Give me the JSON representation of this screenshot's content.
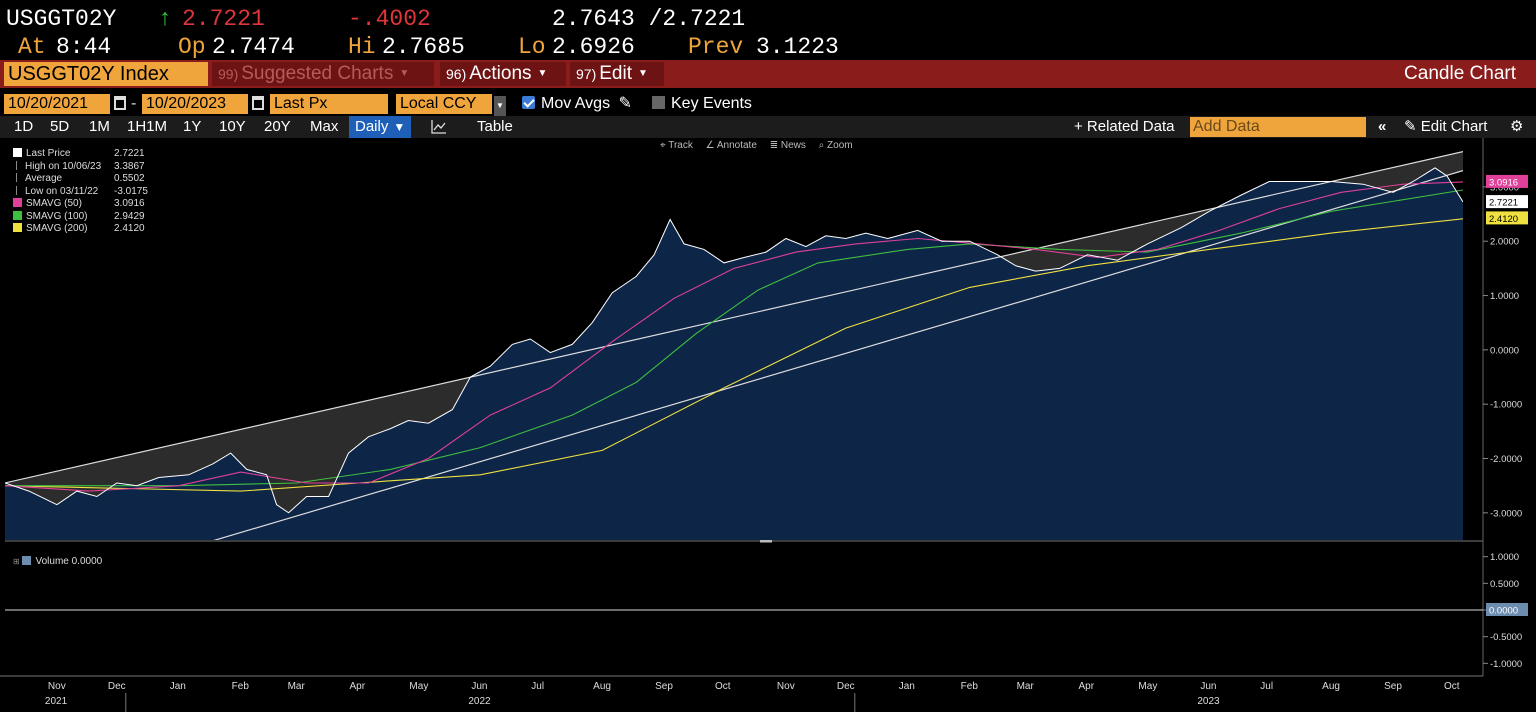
{
  "quote": {
    "ticker": "USGGT02Y",
    "arrow": "↑",
    "last": "2.7221",
    "change": "-.4002",
    "bid_ask": "2.7643 /2.7221",
    "at_label": "At",
    "at_time": "8:44",
    "open_label": "Op",
    "open": "2.7474",
    "high_label": "Hi",
    "high": "2.7685",
    "low_label": "Lo",
    "low": "2.6926",
    "prev_label": "Prev",
    "prev": "3.1223"
  },
  "titlebar": {
    "security": "USGGT02Y Index",
    "suggested_num": "99)",
    "suggested_label": "Suggested Charts",
    "actions_num": "96)",
    "actions_label": "Actions",
    "edit_num": "97)",
    "edit_label": "Edit",
    "chart_type": "Candle Chart"
  },
  "controls": {
    "start_date": "10/20/2021",
    "dash": "-",
    "end_date": "10/20/2023",
    "field": "Last Px",
    "currency": "Local CCY",
    "mov_avgs": "Mov Avgs",
    "key_events": "Key Events"
  },
  "range": {
    "buttons": [
      "1D",
      "5D",
      "1M",
      "1H1M",
      "1Y",
      "10Y",
      "20Y",
      "Max"
    ],
    "period": "Daily",
    "table": "Table",
    "related": "+ Related Data",
    "add_data_placeholder": "Add Data",
    "edit_chart": "Edit Chart"
  },
  "chart_toolbar": {
    "track": "Track",
    "annotate": "Annotate",
    "news": "News",
    "zoom": "Zoom"
  },
  "legend": [
    {
      "label": "Last Price",
      "value": "2.7221",
      "color": "#ffffff"
    },
    {
      "label": "High on 10/06/23",
      "value": "3.3867",
      "color": ""
    },
    {
      "label": "Average",
      "value": "0.5502",
      "color": ""
    },
    {
      "label": "Low on 03/11/22",
      "value": "-3.0175",
      "color": ""
    },
    {
      "label": "SMAVG (50)",
      "value": "3.0916",
      "color": "#e0409a"
    },
    {
      "label": "SMAVG (100)",
      "value": "2.9429",
      "color": "#3fbf3f"
    },
    {
      "label": "SMAVG (200)",
      "value": "2.4120",
      "color": "#f0e040"
    }
  ],
  "volume_legend": {
    "label": "Volume",
    "value": "0.0000"
  },
  "axis_tags": {
    "last": "2.7221",
    "sma50": "3.0916",
    "sma200": "2.4120",
    "volume": "0.0000"
  },
  "colors": {
    "orange": "#f0a43c",
    "red_bar": "#8b1c1c",
    "area": "#0d2547",
    "price": "#ffffff",
    "sma50": "#e0409a",
    "sma100": "#3fbf3f",
    "sma200": "#f0e040"
  },
  "chart_data": {
    "type": "line",
    "title": "",
    "x_start": "2021-10-20",
    "x_end": "2023-10-20",
    "ylim": [
      -3.5,
      3.9
    ],
    "yticks": [
      "3.0000",
      "2.0000",
      "1.0000",
      "0.0000",
      "-1.0000",
      "-2.0000",
      "-3.0000"
    ],
    "ytick_values": [
      3,
      2,
      1,
      0,
      -1,
      -2,
      -3
    ],
    "volume_yticks": [
      "1.0000",
      "0.5000",
      "0.0000",
      "-0.5000",
      "-1.0000"
    ],
    "volume_ytick_values": [
      1,
      0.5,
      0,
      -0.5,
      -1
    ],
    "months": [
      {
        "label": "Nov",
        "date": "2021-11-15"
      },
      {
        "label": "Dec",
        "date": "2021-12-15"
      },
      {
        "label": "Jan",
        "date": "2022-01-15"
      },
      {
        "label": "Feb",
        "date": "2022-02-15"
      },
      {
        "label": "Mar",
        "date": "2022-03-15"
      },
      {
        "label": "Apr",
        "date": "2022-04-15"
      },
      {
        "label": "May",
        "date": "2022-05-15"
      },
      {
        "label": "Jun",
        "date": "2022-06-15"
      },
      {
        "label": "Jul",
        "date": "2022-07-15"
      },
      {
        "label": "Aug",
        "date": "2022-08-15"
      },
      {
        "label": "Sep",
        "date": "2022-09-15"
      },
      {
        "label": "Oct",
        "date": "2022-10-15"
      },
      {
        "label": "Nov",
        "date": "2022-11-15"
      },
      {
        "label": "Dec",
        "date": "2022-12-15"
      },
      {
        "label": "Jan",
        "date": "2023-01-15"
      },
      {
        "label": "Feb",
        "date": "2023-02-15"
      },
      {
        "label": "Mar",
        "date": "2023-03-15"
      },
      {
        "label": "Apr",
        "date": "2023-04-15"
      },
      {
        "label": "May",
        "date": "2023-05-15"
      },
      {
        "label": "Jun",
        "date": "2023-06-15"
      },
      {
        "label": "Jul",
        "date": "2023-07-15"
      },
      {
        "label": "Aug",
        "date": "2023-08-15"
      },
      {
        "label": "Sep",
        "date": "2023-09-15"
      },
      {
        "label": "Oct",
        "date": "2023-10-15"
      }
    ],
    "years": [
      {
        "label": "2021",
        "date": "2021-11-15"
      },
      {
        "label": "2022",
        "date": "2022-06-15"
      },
      {
        "label": "2023",
        "date": "2023-06-15"
      }
    ],
    "series": [
      {
        "name": "Last Price",
        "points": [
          [
            "2021-10-20",
            -2.45
          ],
          [
            "2021-11-01",
            -2.6
          ],
          [
            "2021-11-15",
            -2.85
          ],
          [
            "2021-11-25",
            -2.6
          ],
          [
            "2021-12-05",
            -2.7
          ],
          [
            "2021-12-15",
            -2.45
          ],
          [
            "2021-12-25",
            -2.5
          ],
          [
            "2022-01-05",
            -2.35
          ],
          [
            "2022-01-20",
            -2.3
          ],
          [
            "2022-02-01",
            -2.1
          ],
          [
            "2022-02-10",
            -1.9
          ],
          [
            "2022-02-18",
            -2.2
          ],
          [
            "2022-02-28",
            -2.3
          ],
          [
            "2022-03-05",
            -2.85
          ],
          [
            "2022-03-11",
            -3.0
          ],
          [
            "2022-03-20",
            -2.7
          ],
          [
            "2022-03-31",
            -2.7
          ],
          [
            "2022-04-10",
            -1.9
          ],
          [
            "2022-04-20",
            -1.6
          ],
          [
            "2022-05-01",
            -1.45
          ],
          [
            "2022-05-10",
            -1.3
          ],
          [
            "2022-05-20",
            -1.35
          ],
          [
            "2022-06-01",
            -1.1
          ],
          [
            "2022-06-10",
            -0.5
          ],
          [
            "2022-06-20",
            -0.3
          ],
          [
            "2022-07-01",
            0.1
          ],
          [
            "2022-07-10",
            0.2
          ],
          [
            "2022-07-20",
            -0.05
          ],
          [
            "2022-07-31",
            0.1
          ],
          [
            "2022-08-10",
            0.5
          ],
          [
            "2022-08-20",
            1.05
          ],
          [
            "2022-09-01",
            1.35
          ],
          [
            "2022-09-10",
            1.75
          ],
          [
            "2022-09-18",
            2.4
          ],
          [
            "2022-09-25",
            1.95
          ],
          [
            "2022-10-05",
            1.85
          ],
          [
            "2022-10-15",
            1.6
          ],
          [
            "2022-10-25",
            1.7
          ],
          [
            "2022-11-05",
            1.8
          ],
          [
            "2022-11-15",
            2.05
          ],
          [
            "2022-11-25",
            1.9
          ],
          [
            "2022-12-05",
            2.1
          ],
          [
            "2022-12-15",
            2.05
          ],
          [
            "2022-12-25",
            2.15
          ],
          [
            "2023-01-05",
            2.05
          ],
          [
            "2023-01-20",
            2.2
          ],
          [
            "2023-02-01",
            2.0
          ],
          [
            "2023-02-15",
            2.0
          ],
          [
            "2023-03-01",
            1.75
          ],
          [
            "2023-03-10",
            1.55
          ],
          [
            "2023-03-20",
            1.45
          ],
          [
            "2023-04-01",
            1.5
          ],
          [
            "2023-04-15",
            1.75
          ],
          [
            "2023-04-30",
            1.65
          ],
          [
            "2023-05-15",
            1.95
          ],
          [
            "2023-06-01",
            2.25
          ],
          [
            "2023-06-15",
            2.55
          ],
          [
            "2023-07-01",
            2.85
          ],
          [
            "2023-07-15",
            3.1
          ],
          [
            "2023-08-01",
            3.1
          ],
          [
            "2023-08-15",
            3.1
          ],
          [
            "2023-08-31",
            3.05
          ],
          [
            "2023-09-15",
            2.9
          ],
          [
            "2023-09-25",
            3.1
          ],
          [
            "2023-10-06",
            3.35
          ],
          [
            "2023-10-12",
            3.2
          ],
          [
            "2023-10-20",
            2.7221
          ]
        ]
      },
      {
        "name": "SMAVG (50)",
        "points": [
          [
            "2021-10-20",
            -2.5
          ],
          [
            "2021-12-01",
            -2.6
          ],
          [
            "2022-01-15",
            -2.5
          ],
          [
            "2022-02-15",
            -2.25
          ],
          [
            "2022-03-20",
            -2.45
          ],
          [
            "2022-04-20",
            -2.45
          ],
          [
            "2022-05-20",
            -2.0
          ],
          [
            "2022-06-20",
            -1.2
          ],
          [
            "2022-07-20",
            -0.7
          ],
          [
            "2022-08-20",
            0.15
          ],
          [
            "2022-09-20",
            0.95
          ],
          [
            "2022-10-20",
            1.5
          ],
          [
            "2022-11-20",
            1.8
          ],
          [
            "2022-12-20",
            1.95
          ],
          [
            "2023-01-20",
            2.05
          ],
          [
            "2023-02-20",
            1.95
          ],
          [
            "2023-03-20",
            1.85
          ],
          [
            "2023-04-20",
            1.7
          ],
          [
            "2023-05-20",
            1.85
          ],
          [
            "2023-06-20",
            2.2
          ],
          [
            "2023-07-20",
            2.6
          ],
          [
            "2023-08-20",
            2.9
          ],
          [
            "2023-09-20",
            3.05
          ],
          [
            "2023-10-20",
            3.0916
          ]
        ]
      },
      {
        "name": "SMAVG (100)",
        "points": [
          [
            "2021-10-20",
            -2.5
          ],
          [
            "2022-01-15",
            -2.5
          ],
          [
            "2022-03-15",
            -2.45
          ],
          [
            "2022-05-01",
            -2.2
          ],
          [
            "2022-06-15",
            -1.8
          ],
          [
            "2022-07-31",
            -1.2
          ],
          [
            "2022-09-01",
            -0.6
          ],
          [
            "2022-10-01",
            0.3
          ],
          [
            "2022-11-01",
            1.1
          ],
          [
            "2022-12-01",
            1.6
          ],
          [
            "2023-01-15",
            1.85
          ],
          [
            "2023-02-15",
            1.95
          ],
          [
            "2023-04-01",
            1.85
          ],
          [
            "2023-05-15",
            1.8
          ],
          [
            "2023-07-01",
            2.15
          ],
          [
            "2023-08-15",
            2.55
          ],
          [
            "2023-10-20",
            2.9429
          ]
        ]
      },
      {
        "name": "SMAVG (200)",
        "points": [
          [
            "2021-10-20",
            -2.5
          ],
          [
            "2022-02-15",
            -2.6
          ],
          [
            "2022-04-15",
            -2.45
          ],
          [
            "2022-06-15",
            -2.3
          ],
          [
            "2022-08-15",
            -1.85
          ],
          [
            "2022-10-15",
            -0.7
          ],
          [
            "2022-12-15",
            0.4
          ],
          [
            "2023-02-15",
            1.15
          ],
          [
            "2023-04-15",
            1.55
          ],
          [
            "2023-06-15",
            1.85
          ],
          [
            "2023-08-15",
            2.15
          ],
          [
            "2023-10-20",
            2.412
          ]
        ]
      }
    ],
    "channel": {
      "upper": [
        [
          "2021-10-20",
          -2.45
        ],
        [
          "2023-10-20",
          3.65
        ]
      ],
      "lower": [
        [
          "2022-01-15",
          -3.7
        ],
        [
          "2023-10-20",
          3.3
        ]
      ]
    }
  }
}
